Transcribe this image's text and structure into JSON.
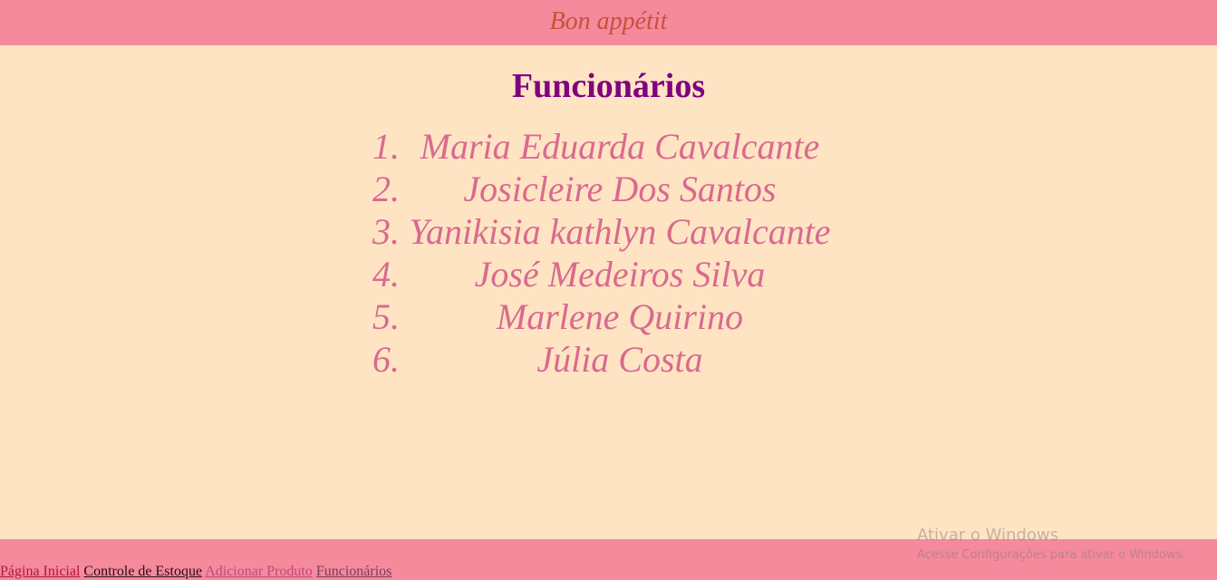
{
  "header": {
    "brand": "Bon appétit"
  },
  "main": {
    "title": "Funcionários",
    "staff": [
      {
        "num": "1.",
        "name": "Maria Eduarda Cavalcante"
      },
      {
        "num": "2.",
        "name": "Josicleire Dos Santos"
      },
      {
        "num": "3.",
        "name": "Yanikisia kathlyn Cavalcante"
      },
      {
        "num": "4.",
        "name": "José Medeiros Silva"
      },
      {
        "num": "5.",
        "name": "Marlene Quirino"
      },
      {
        "num": "6.",
        "name": "Júlia Costa"
      }
    ]
  },
  "footer": {
    "links": {
      "home": "Página Inicial",
      "stock": "Controle de Estoque",
      "add_product": "Adicionar Produto",
      "staff": "Funcionários"
    }
  },
  "watermark": {
    "title": "Ativar o Windows",
    "subtitle": "Acesse Configurações para ativar o Windows."
  },
  "colors": {
    "header_bg": "#f48a9c",
    "page_bg": "#ffe4c4",
    "brand_text": "#c8503c",
    "title_text": "#800080",
    "list_text": "#d96a8e"
  }
}
